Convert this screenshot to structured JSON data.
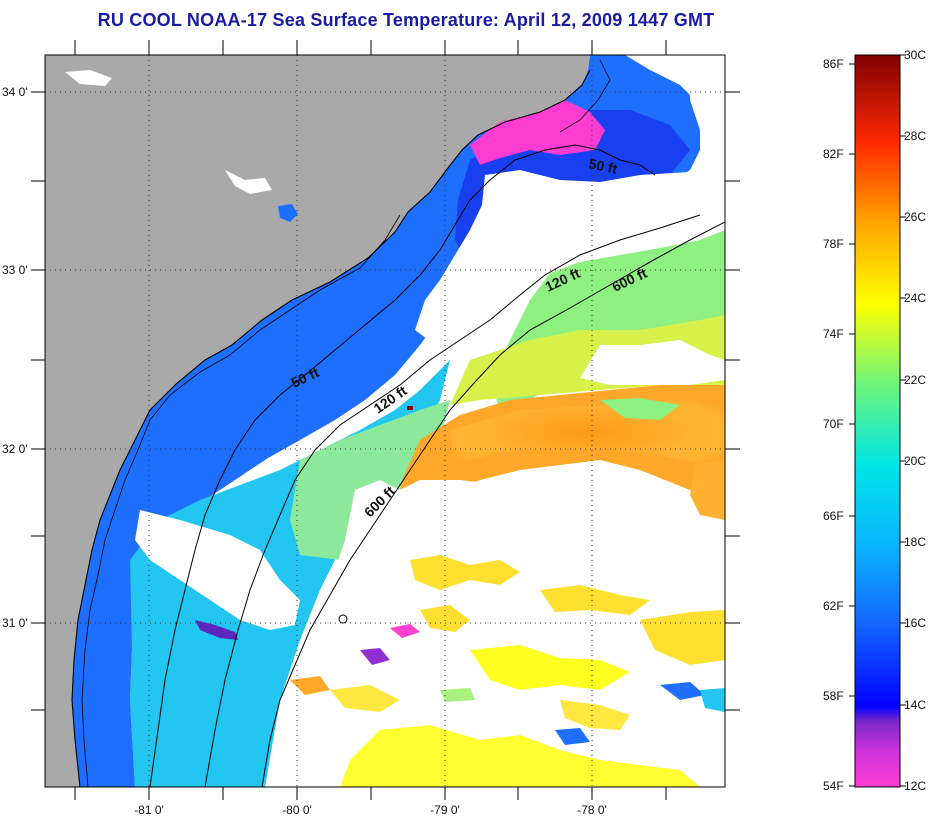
{
  "title": "RU COOL  NOAA-17  Sea Surface Temperature:  April 12, 2009 1447 GMT",
  "map": {
    "lon_labels": [
      "-81 0'",
      "-80 0'",
      "-79 0'",
      "-78 0'"
    ],
    "lat_labels": [
      "34 0'",
      "33 0'",
      "32 0'",
      "31 0'"
    ],
    "contours": [
      {
        "label": "50 ft",
        "depth_ft": 50
      },
      {
        "label": "50 ft",
        "depth_ft": 50
      },
      {
        "label": "120 ft",
        "depth_ft": 120
      },
      {
        "label": "120 ft",
        "depth_ft": 120
      },
      {
        "label": "600 ft",
        "depth_ft": 600
      },
      {
        "label": "600 ft",
        "depth_ft": 600
      }
    ],
    "colors": {
      "land": "#a9a9a9",
      "no_data": "#ffffff",
      "gridline": "#333333",
      "coastline": "#000000"
    }
  },
  "colorbar": {
    "fahrenheit_labels": [
      "86F",
      "82F",
      "78F",
      "74F",
      "70F",
      "66F",
      "62F",
      "58F",
      "54F"
    ],
    "celsius_labels": [
      "30C",
      "28C",
      "26C",
      "24C",
      "22C",
      "20C",
      "18C",
      "16C",
      "14C",
      "12C"
    ],
    "range_c": [
      12,
      30
    ],
    "range_f": [
      54,
      86
    ],
    "colors": [
      "#ff3cd2",
      "#9932cc",
      "#0000ff",
      "#1e78ff",
      "#00e6f0",
      "#7dff7d",
      "#ffff00",
      "#ffa500",
      "#ff0000",
      "#800000"
    ]
  }
}
